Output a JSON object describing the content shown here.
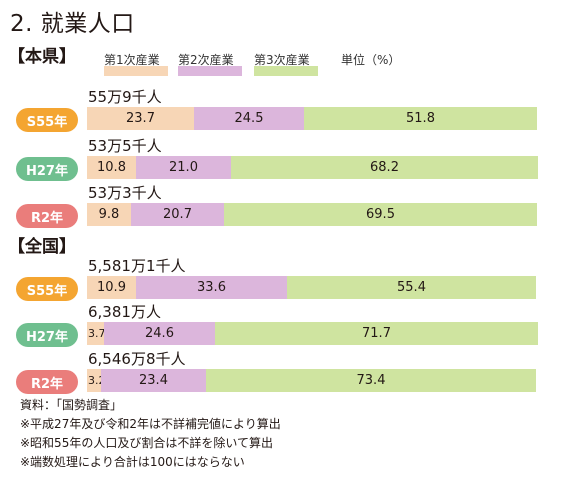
{
  "title": "2. 就業人口",
  "unit_label": "単位（%）",
  "legend": [
    {
      "label": "第1次産業",
      "color": "#f7d6b6"
    },
    {
      "label": "第2次産業",
      "color": "#dcb6dc"
    },
    {
      "label": "第3次産業",
      "color": "#cfe4a0"
    }
  ],
  "chart_data": {
    "type": "bar",
    "orientation": "horizontal-stacked-percent",
    "series_names": [
      "第1次産業",
      "第2次産業",
      "第3次産業"
    ],
    "groups": [
      {
        "label": "【本県】",
        "rows": [
          {
            "year": "S55年",
            "total": "55万9千人",
            "values": [
              23.7,
              24.5,
              51.8
            ],
            "labels": [
              "23.7",
              "24.5",
              "51.8"
            ]
          },
          {
            "year": "H27年",
            "total": "53万5千人",
            "values": [
              10.8,
              21.0,
              68.2
            ],
            "labels": [
              "10.8",
              "21.0",
              "68.2"
            ]
          },
          {
            "year": "R2年",
            "total": "53万3千人",
            "values": [
              9.8,
              20.7,
              69.5
            ],
            "labels": [
              "9.8",
              "20.7",
              "69.5"
            ]
          }
        ]
      },
      {
        "label": "【全国】",
        "rows": [
          {
            "year": "S55年",
            "total": "5,581万1千人",
            "values": [
              10.9,
              33.6,
              55.4
            ],
            "labels": [
              "10.9",
              "33.6",
              "55.4"
            ]
          },
          {
            "year": "H27年",
            "total": "6,381万人",
            "values": [
              3.7,
              24.6,
              71.7
            ],
            "labels": [
              "3.7",
              "24.6",
              "71.7"
            ]
          },
          {
            "year": "R2年",
            "total": "6,546万8千人",
            "values": [
              3.2,
              23.4,
              73.4
            ],
            "labels": [
              "3.2",
              "23.4",
              "73.4"
            ]
          }
        ]
      }
    ]
  },
  "notes": [
    "資料：「国勢調査」",
    "※平成27年及び令和2年は不詳補完値により算出",
    "※昭和55年の人口及び割合は不詳を除いて算出",
    "※端数処理により合計は100にはならない"
  ]
}
